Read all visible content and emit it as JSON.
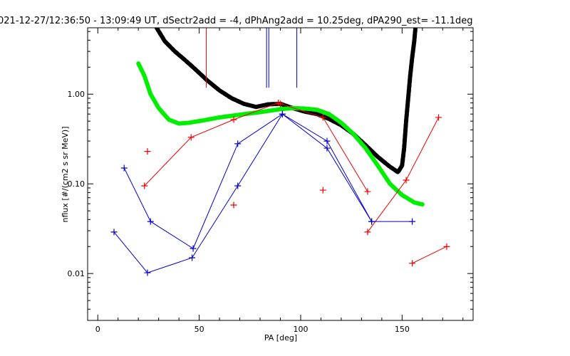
{
  "chart_data": {
    "type": "line",
    "title": "021-12-27/12:36:50 - 13:09:49 UT, dSectr2add = -4, dPhAng2add = 10.25deg, dPA290_est= -11.1deg",
    "xlabel": "PA [deg]",
    "ylabel": "nflux [#/(cm2 s sr MeV)]",
    "xlim": [
      -5,
      185
    ],
    "ylim": [
      0.003,
      5.5
    ],
    "yscale": "log",
    "xticks": [
      0,
      50,
      100,
      150
    ],
    "xtick_labels": [
      "0",
      "50",
      "100",
      "150"
    ],
    "yticks": [
      0.01,
      0.1,
      1.0
    ],
    "ytick_labels": [
      "0.01",
      "0.10",
      "1.00"
    ],
    "grid": false,
    "legend": "none",
    "series": [
      {
        "color": "#000000",
        "style": "thick-dashed",
        "x": [
          29,
          33,
          38,
          43,
          48,
          54,
          60,
          66,
          72,
          78,
          84,
          90,
          96,
          102,
          108,
          114,
          120,
          126,
          132,
          138,
          144,
          148,
          150,
          151,
          152,
          153,
          154,
          155,
          156,
          156.6
        ],
        "y": [
          5.5,
          3.9,
          3.0,
          2.4,
          1.9,
          1.42,
          1.1,
          0.9,
          0.78,
          0.72,
          0.77,
          0.78,
          0.7,
          0.64,
          0.6,
          0.53,
          0.45,
          0.36,
          0.27,
          0.2,
          0.155,
          0.135,
          0.16,
          0.25,
          0.5,
          0.9,
          1.6,
          2.6,
          3.9,
          5.5
        ]
      },
      {
        "color": "#00ee00",
        "style": "thick-dashed",
        "x": [
          20,
          23,
          26,
          30,
          35,
          40,
          45,
          52,
          60,
          70,
          80,
          90,
          96,
          102,
          108,
          114,
          120,
          126,
          132,
          138,
          144,
          150,
          156,
          160
        ],
        "y": [
          2.2,
          1.6,
          1.0,
          0.7,
          0.52,
          0.47,
          0.48,
          0.51,
          0.55,
          0.59,
          0.63,
          0.68,
          0.7,
          0.69,
          0.67,
          0.6,
          0.48,
          0.36,
          0.25,
          0.16,
          0.1,
          0.075,
          0.062,
          0.059
        ]
      },
      {
        "color": "#ee0000",
        "style": "markers+lines",
        "points": [
          [
            23,
            0.095
          ],
          [
            46,
            0.33
          ],
          [
            67,
            0.52
          ],
          [
            89,
            0.8
          ]
        ],
        "markers_only": [
          [
            24.5,
            0.23
          ],
          [
            67,
            0.058
          ],
          [
            111,
            0.085
          ]
        ]
      },
      {
        "color": "#ee0000",
        "style": "markers+lines",
        "points": [
          [
            90,
            0.78
          ],
          [
            111,
            0.55
          ],
          [
            133,
            0.082
          ]
        ]
      },
      {
        "color": "#ee0000",
        "style": "markers+lines",
        "points": [
          [
            133,
            0.029
          ],
          [
            152,
            0.11
          ],
          [
            168,
            0.55
          ]
        ]
      },
      {
        "color": "#ee0000",
        "style": "markers+lines",
        "points": [
          [
            155,
            0.013
          ],
          [
            172,
            0.02
          ]
        ]
      },
      {
        "color": "#0000cc",
        "style": "markers+lines",
        "points": [
          [
            13,
            0.15
          ],
          [
            26,
            0.038
          ],
          [
            47,
            0.019
          ],
          [
            69,
            0.28
          ],
          [
            91,
            0.6
          ],
          [
            113,
            0.3
          ],
          [
            135,
            0.038
          ],
          [
            155,
            0.038
          ]
        ]
      },
      {
        "color": "#0000cc",
        "style": "markers+lines",
        "points": [
          [
            8,
            0.029
          ],
          [
            24.5,
            0.0102
          ],
          [
            46.5,
            0.015
          ],
          [
            69,
            0.095
          ],
          [
            91,
            0.6
          ],
          [
            113,
            0.25
          ],
          [
            135,
            0.038
          ]
        ]
      }
    ],
    "vlines": [
      {
        "color": "#ee0000",
        "x": 53.5,
        "y_from": 1.18
      },
      {
        "color": "#0000cc",
        "x": 83.2,
        "y_from": 1.18
      },
      {
        "color": "#0000cc",
        "x": 84.3,
        "y_from": 1.18
      },
      {
        "color": "#0000cc",
        "x": 98.1,
        "y_from": 1.18
      }
    ]
  }
}
